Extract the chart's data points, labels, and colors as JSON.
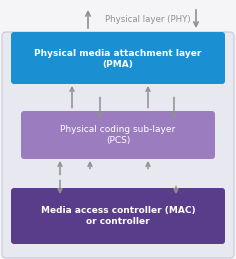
{
  "background_color": "#f5f5f8",
  "outer_box_facecolor": "#e8e8f0",
  "outer_box_edgecolor": "#c8c8d8",
  "pma_box_color": "#1a8fd1",
  "pma_text_line1": "Physical media attachment layer",
  "pma_text_line2": "(PMA)",
  "pcs_box_color": "#9b7dbf",
  "pcs_text_line1": "Physical coding sub-layer",
  "pcs_text_line2": "(PCS)",
  "mac_box_color": "#5a3d8a",
  "mac_text_line1": "Media access controller (MAC)",
  "mac_text_line2": "or controller",
  "phy_label": "Physical layer (PHY)",
  "text_color_white": "#ffffff",
  "text_color_gray": "#909090",
  "arrow_color": "#909090",
  "figsize": [
    2.36,
    2.59
  ],
  "dpi": 100
}
